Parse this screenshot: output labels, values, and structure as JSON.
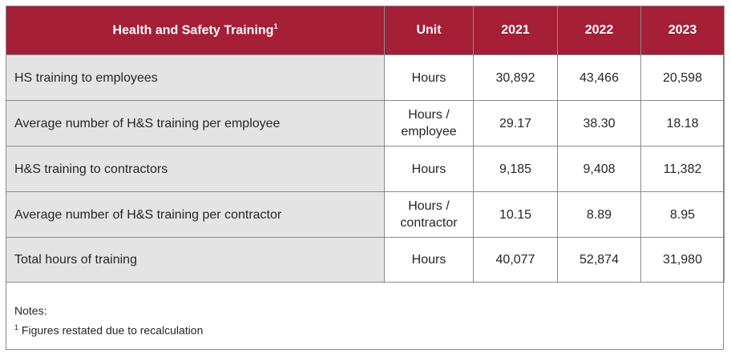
{
  "table": {
    "headers": {
      "metric": "Health and Safety Training",
      "metric_footnote": "1",
      "unit": "Unit",
      "years": [
        "2021",
        "2022",
        "2023"
      ]
    },
    "rows": [
      {
        "label": "HS training to employees",
        "unit": "Hours",
        "values": [
          "30,892",
          "43,466",
          "20,598"
        ]
      },
      {
        "label": "Average number of H&S training per employee",
        "unit": "Hours /\nemployee",
        "values": [
          "29.17",
          "38.30",
          "18.18"
        ]
      },
      {
        "label": "H&S training to contractors",
        "unit": "Hours",
        "values": [
          "9,185",
          "9,408",
          "11,382"
        ]
      },
      {
        "label": "Average number of H&S training per contractor",
        "unit": "Hours /\ncontractor",
        "values": [
          "10.15",
          "8.89",
          "8.95"
        ]
      },
      {
        "label": "Total hours of training",
        "unit": "Hours",
        "values": [
          "40,077",
          "52,874",
          "31,980"
        ]
      }
    ]
  },
  "notes": {
    "title": "Notes:",
    "items": [
      {
        "marker": "1",
        "text": "Figures restated due to recalculation"
      }
    ]
  },
  "colors": {
    "header_background": "#a51f36",
    "label_background": "#e4e4e4",
    "border": "#8a8a8a"
  }
}
